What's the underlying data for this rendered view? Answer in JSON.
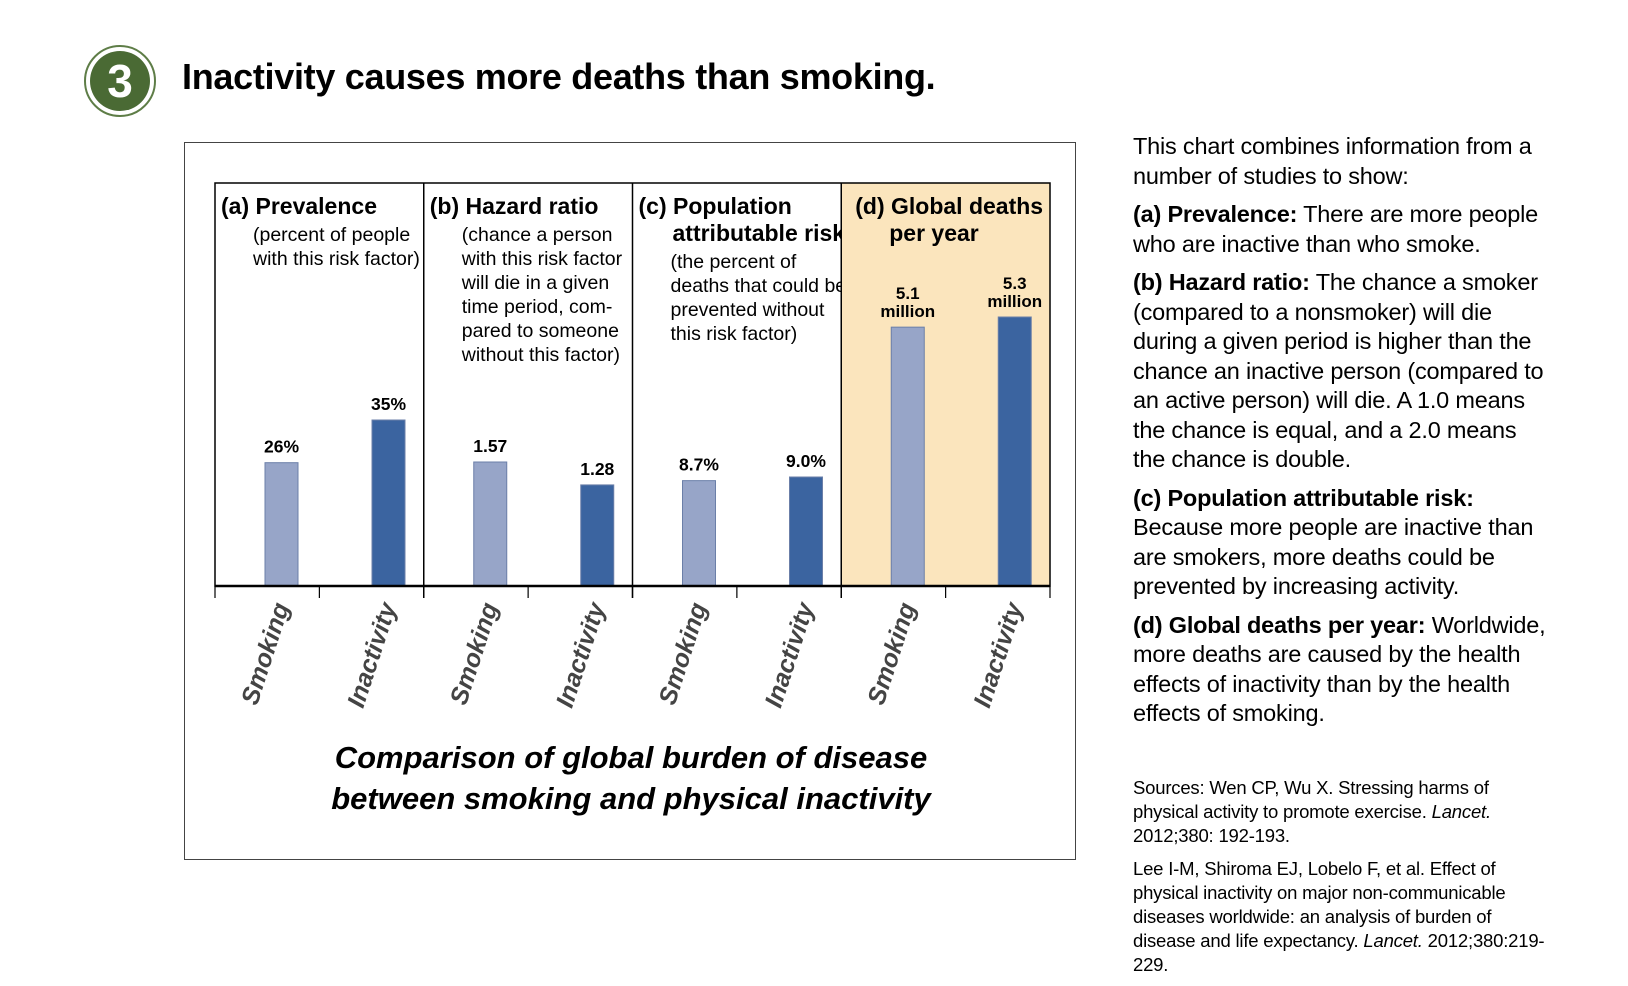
{
  "badge": {
    "number": "3"
  },
  "headline": "Inactivity causes more deaths than smoking.",
  "side_text": {
    "intro": "This chart combines information from a number of studies to show:",
    "items": [
      {
        "term": "(a) Prevalence:",
        "body": "There are more people who are inactive than who smoke."
      },
      {
        "term": "(b) Hazard ratio:",
        "body": "The chance a smoker (compared to a nonsmoker) will die during a given period is higher than the chance an inactive person (compared to an active person) will die. A 1.0 means the chance is equal, and a 2.0 means the chance is double."
      },
      {
        "term": "(c) Population attributable risk:",
        "body": "Because more people are inactive than are smokers, more deaths could be prevented by increasing activity."
      },
      {
        "term": "(d) Global deaths per year:",
        "body": "Worldwide, more deaths are caused by the health effects of inactivity than by the health effects of smoking."
      }
    ]
  },
  "sources": {
    "source1_plain": "Sources: Wen CP, Wu X. Stressing harms of physical activity to promote exercise.",
    "source1_journal": "Lancet.",
    "source1_tail": "2012;380: 192-193.",
    "source2_plain": "Lee I-M, Shiroma EJ, Lobelo F, et al. Effect of physical inactivity on major non-communicable diseases worldwide: an analysis of burden of disease and life expectancy.",
    "source2_journal": "Lancet.",
    "source2_tail": "2012;380:219-229."
  },
  "colors": {
    "smoking": "#97a5c8",
    "inactivity": "#3b64a0",
    "highlight": "#fbe5bd",
    "badge": "#4a6a34"
  },
  "chart_data": {
    "type": "bar",
    "title": "Comparison of global burden of disease between smoking and physical inactivity",
    "title_lines": [
      "Comparison of global burden of disease",
      "between smoking and physical inactivity"
    ],
    "categories": [
      "Smoking",
      "Inactivity"
    ],
    "panels": [
      {
        "title_lines": [
          "(a) Prevalence"
        ],
        "desc_lines": [
          "(percent of people",
          "with this risk factor)"
        ],
        "values": [
          26,
          35
        ],
        "labels": [
          "26%",
          "35%"
        ],
        "highlight": false
      },
      {
        "title_lines": [
          "(b) Hazard ratio"
        ],
        "desc_lines": [
          "(chance a person",
          "with this risk factor",
          "will die in a given",
          "time period, com-",
          "pared to someone",
          "without this factor)"
        ],
        "values": [
          1.57,
          1.28
        ],
        "labels": [
          "1.57",
          "1.28"
        ],
        "highlight": false
      },
      {
        "title_lines": [
          "(c) Population",
          "attributable risk"
        ],
        "desc_lines": [
          "(the percent of",
          "deaths that could be",
          "prevented without",
          "this risk factor)"
        ],
        "values": [
          8.7,
          9.0
        ],
        "labels": [
          "8.7%",
          "9.0%"
        ],
        "highlight": false
      },
      {
        "title_lines": [
          "(d) Global deaths",
          "per year"
        ],
        "desc_lines": [],
        "values": [
          5.1,
          5.3
        ],
        "labels": [
          [
            "5.1",
            "million"
          ],
          [
            "5.3",
            "million"
          ]
        ],
        "highlight": true
      }
    ]
  }
}
